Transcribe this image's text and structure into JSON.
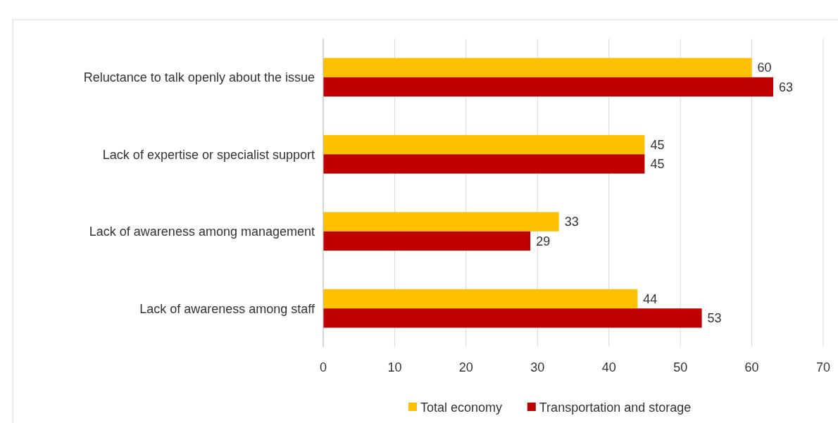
{
  "chart_data": {
    "type": "bar",
    "orientation": "horizontal",
    "categories": [
      "Reluctance to talk openly about the issue",
      "Lack of expertise or specialist support",
      "Lack of awareness among management",
      "Lack of awareness among staff"
    ],
    "series": [
      {
        "name": "Total economy",
        "color": "#ffc000",
        "values": [
          60,
          45,
          33,
          44
        ]
      },
      {
        "name": "Transportation and storage",
        "color": "#c00000",
        "values": [
          63,
          45,
          29,
          53
        ]
      }
    ],
    "xlim": [
      0,
      70
    ],
    "xticks": [
      0,
      10,
      20,
      30,
      40,
      50,
      60,
      70
    ],
    "grid": "x",
    "legend": "bottom",
    "data_labels": true
  }
}
